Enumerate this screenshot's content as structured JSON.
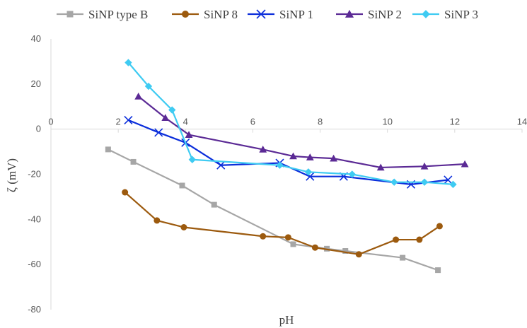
{
  "chart_data": {
    "type": "line",
    "title": "",
    "xlabel": "pH",
    "ylabel": "ζ (mV)",
    "xlim": [
      0,
      14
    ],
    "ylim": [
      -80,
      40
    ],
    "x_ticks": [
      0,
      2,
      4,
      6,
      8,
      10,
      12,
      14
    ],
    "y_ticks": [
      40,
      20,
      0,
      -20,
      -40,
      -60,
      -80
    ],
    "x_tick_labels": [
      "0",
      "2",
      "4",
      "6",
      "8",
      "10",
      "12",
      "14"
    ],
    "y_tick_labels": [
      "40",
      "20",
      "0",
      "-20",
      "-40",
      "-60",
      "-80"
    ],
    "grid": false,
    "legend_position": "top",
    "series": [
      {
        "name": "SiNP type B",
        "color": "#A6A6A6",
        "marker": "square",
        "x": [
          1.7,
          2.45,
          3.9,
          4.85,
          7.2,
          8.2,
          8.75,
          10.45,
          11.5
        ],
        "y": [
          -9,
          -14.5,
          -25,
          -33.5,
          -51,
          -53,
          -54,
          -57,
          -62.5
        ]
      },
      {
        "name": "SiNP 8",
        "color": "#9C5A0E",
        "marker": "circle",
        "x": [
          2.2,
          3.15,
          3.95,
          6.3,
          7.05,
          7.85,
          9.15,
          10.25,
          10.95,
          11.55
        ],
        "y": [
          -28,
          -40.5,
          -43.5,
          -47.5,
          -48,
          -52.5,
          -55.5,
          -49,
          -49,
          -43
        ]
      },
      {
        "name": "SiNP 1",
        "color": "#0B2EDB",
        "marker": "x",
        "x": [
          2.3,
          3.2,
          4.0,
          5.05,
          6.8,
          7.7,
          8.7,
          10.7,
          11.8
        ],
        "y": [
          4,
          -1.5,
          -6,
          -16,
          -15,
          -21,
          -21,
          -24.5,
          -22.5
        ]
      },
      {
        "name": "SiNP 2",
        "color": "#5B2A95",
        "marker": "triangle",
        "x": [
          2.6,
          3.4,
          4.1,
          6.3,
          7.2,
          7.7,
          8.4,
          9.8,
          11.1,
          12.3
        ],
        "y": [
          14.5,
          5,
          -2.5,
          -9,
          -12,
          -12.5,
          -13,
          -17,
          -16.5,
          -15.5
        ]
      },
      {
        "name": "SiNP 3",
        "color": "#3FCBF2",
        "marker": "diamond",
        "x": [
          2.3,
          2.9,
          3.6,
          4.2,
          6.8,
          7.65,
          8.95,
          10.2,
          11.1,
          11.95
        ],
        "y": [
          29.5,
          19,
          8.5,
          -13.5,
          -16,
          -19,
          -20,
          -23.5,
          -23.5,
          -24.5
        ]
      }
    ]
  }
}
